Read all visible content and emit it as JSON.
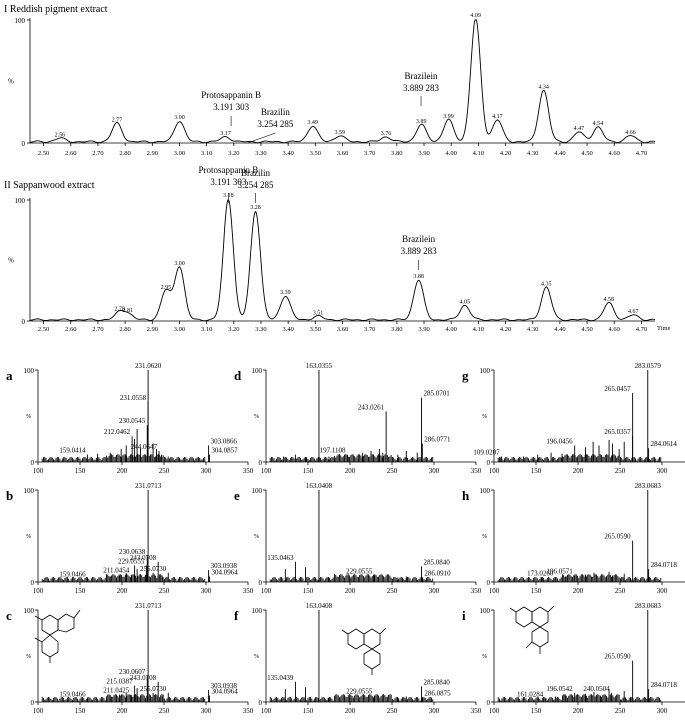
{
  "chart_data": [
    {
      "type": "line",
      "title": "I Reddish pigment extract",
      "xlim": [
        2.45,
        4.75
      ],
      "ylim": [
        0,
        100
      ],
      "xticks": [
        2.5,
        2.6,
        2.7,
        2.8,
        2.9,
        3.0,
        3.1,
        3.2,
        3.3,
        3.4,
        3.5,
        3.6,
        3.7,
        3.8,
        3.9,
        4.0,
        4.1,
        4.2,
        4.3,
        4.4,
        4.5,
        4.6,
        4.7
      ],
      "yticks": [
        0,
        100
      ],
      "ylabel": "%",
      "xlabel": "",
      "peaks": [
        {
          "rt": 2.56,
          "height": 3,
          "label": "2.56"
        },
        {
          "rt": 2.77,
          "height": 15,
          "label": "2.77"
        },
        {
          "rt": 3.0,
          "height": 17,
          "label": "3.00"
        },
        {
          "rt": 3.17,
          "height": 4,
          "label": "3.17"
        },
        {
          "rt": 3.49,
          "height": 13,
          "label": "3.49"
        },
        {
          "rt": 3.59,
          "height": 5,
          "label": "3.59"
        },
        {
          "rt": 3.76,
          "height": 4,
          "label": "3.76"
        },
        {
          "rt": 3.89,
          "height": 14,
          "label": "3.89"
        },
        {
          "rt": 3.99,
          "height": 18,
          "label": "3.99"
        },
        {
          "rt": 4.09,
          "height": 100,
          "label": "4.09"
        },
        {
          "rt": 4.17,
          "height": 18,
          "label": "4.17"
        },
        {
          "rt": 4.34,
          "height": 42,
          "label": "4.34"
        },
        {
          "rt": 4.47,
          "height": 8,
          "label": "4.47"
        },
        {
          "rt": 4.54,
          "height": 12,
          "label": "4.54"
        },
        {
          "rt": 4.66,
          "height": 5,
          "label": "4.66"
        }
      ],
      "annotations": [
        {
          "name": "Protosappanin B",
          "value": "3.191   303",
          "rt": 3.19
        },
        {
          "name": "Brazilin",
          "value": "3.254   285",
          "rt": 3.25
        },
        {
          "name": "Brazilein",
          "value": "3.889   283",
          "rt": 3.889
        }
      ]
    },
    {
      "type": "line",
      "title": "II Sappanwood extract",
      "xlim": [
        2.45,
        4.75
      ],
      "ylim": [
        0,
        100
      ],
      "xticks": [
        2.5,
        2.6,
        2.7,
        2.8,
        2.9,
        3.0,
        3.1,
        3.2,
        3.3,
        3.4,
        3.5,
        3.6,
        3.7,
        3.8,
        3.9,
        4.0,
        4.1,
        4.2,
        4.3,
        4.4,
        4.5,
        4.6,
        4.7
      ],
      "yticks": [
        0,
        100
      ],
      "ylabel": "%",
      "xlabel": "Time",
      "peaks": [
        {
          "rt": 2.78,
          "height": 6,
          "label": "2.78"
        },
        {
          "rt": 2.81,
          "height": 5,
          "label": "2.81"
        },
        {
          "rt": 2.95,
          "height": 24,
          "label": "2.95"
        },
        {
          "rt": 3.0,
          "height": 44,
          "label": "3.00"
        },
        {
          "rt": 3.18,
          "height": 100,
          "label": "3.18"
        },
        {
          "rt": 3.28,
          "height": 90,
          "label": "3.28"
        },
        {
          "rt": 3.39,
          "height": 20,
          "label": "3.39"
        },
        {
          "rt": 3.51,
          "height": 3,
          "label": "3.51"
        },
        {
          "rt": 3.88,
          "height": 33,
          "label": "3.88"
        },
        {
          "rt": 4.05,
          "height": 12,
          "label": "4.05"
        },
        {
          "rt": 4.35,
          "height": 27,
          "label": "4.35"
        },
        {
          "rt": 4.58,
          "height": 14,
          "label": "4.58"
        },
        {
          "rt": 4.67,
          "height": 4,
          "label": "4.67"
        }
      ],
      "annotations": [
        {
          "name": "Protosappanin B",
          "value": "3.191   303",
          "rt": 3.18
        },
        {
          "name": "Brazilin",
          "value": "3.254   285",
          "rt": 3.28
        },
        {
          "name": "Brazilein",
          "value": "3.889   283",
          "rt": 3.88
        }
      ]
    },
    {
      "type": "bar",
      "panel": "a",
      "xlim": [
        100,
        350
      ],
      "ylim": [
        0,
        100
      ],
      "xticks": [
        100,
        150,
        200,
        250,
        300,
        350
      ],
      "yticks": [
        0,
        100
      ],
      "ylabel": "%",
      "peaks": [
        [
          159.0414,
          8,
          "159.0414"
        ],
        [
          212.0462,
          28,
          "212.0462"
        ],
        [
          230.0545,
          40,
          "230.0545"
        ],
        [
          231.0558,
          65,
          "231.0558"
        ],
        [
          231.062,
          100,
          "231.0620"
        ],
        [
          244.0647,
          12,
          "244.0647"
        ],
        [
          303.0866,
          18,
          "303.0866"
        ],
        [
          304.0857,
          8,
          "304.0857"
        ],
        [
          215,
          25,
          ""
        ],
        [
          218,
          36,
          ""
        ],
        [
          222,
          15,
          ""
        ],
        [
          205,
          18,
          ""
        ],
        [
          199,
          14,
          ""
        ],
        [
          186,
          10,
          ""
        ],
        [
          171,
          9,
          ""
        ],
        [
          237,
          20,
          ""
        ],
        [
          241,
          14,
          ""
        ],
        [
          247,
          8,
          ""
        ],
        [
          255,
          6,
          ""
        ],
        [
          288,
          4,
          ""
        ]
      ]
    },
    {
      "type": "bar",
      "panel": "b",
      "xlim": [
        100,
        350
      ],
      "ylim": [
        0,
        100
      ],
      "xticks": [
        100,
        150,
        200,
        250,
        300,
        350
      ],
      "yticks": [
        0,
        100
      ],
      "ylabel": "%",
      "peaks": [
        [
          159.0466,
          4,
          "159.0466"
        ],
        [
          211.0454,
          8,
          "211.0454"
        ],
        [
          229.0555,
          18,
          "229.0555"
        ],
        [
          230.0638,
          28,
          "230.0638"
        ],
        [
          231.0713,
          100,
          "231.0713"
        ],
        [
          243.0708,
          22,
          "243.0708"
        ],
        [
          255.073,
          10,
          "255.0730"
        ],
        [
          303.0938,
          13,
          "303.0938"
        ],
        [
          304.0964,
          6,
          "304.0964"
        ],
        [
          215,
          18,
          ""
        ],
        [
          218,
          14,
          ""
        ],
        [
          205,
          10,
          ""
        ],
        [
          186,
          6,
          ""
        ],
        [
          197,
          7,
          ""
        ],
        [
          237,
          10,
          ""
        ],
        [
          248,
          6,
          ""
        ]
      ]
    },
    {
      "type": "bar",
      "panel": "c",
      "xlim": [
        100,
        350
      ],
      "ylim": [
        0,
        100
      ],
      "xticks": [
        100,
        150,
        200,
        250,
        300,
        350
      ],
      "yticks": [
        0,
        100
      ],
      "ylabel": "%",
      "peaks": [
        [
          159.0466,
          4,
          "159.0466"
        ],
        [
          211.0425,
          8,
          "211.0425"
        ],
        [
          215.0387,
          18,
          "215.0387"
        ],
        [
          230.0607,
          28,
          "230.0607"
        ],
        [
          231.0713,
          100,
          "231.0713"
        ],
        [
          243.0708,
          22,
          "243.0708"
        ],
        [
          255.073,
          10,
          "255.0730"
        ],
        [
          303.0938,
          13,
          "303.0938"
        ],
        [
          304.0964,
          7,
          "304.0964"
        ],
        [
          218,
          15,
          ""
        ],
        [
          205,
          10,
          ""
        ],
        [
          186,
          6,
          ""
        ],
        [
          197,
          8,
          ""
        ],
        [
          237,
          10,
          ""
        ],
        [
          248,
          6,
          ""
        ]
      ]
    },
    {
      "type": "bar",
      "panel": "d",
      "xlim": [
        100,
        350
      ],
      "ylim": [
        0,
        100
      ],
      "xticks": [
        100,
        150,
        200,
        250,
        300,
        350
      ],
      "yticks": [
        0,
        100
      ],
      "ylabel": "%",
      "peaks": [
        [
          163.0355,
          100,
          "163.0355"
        ],
        [
          197.1108,
          8,
          "197.1108"
        ],
        [
          243.0261,
          55,
          "243.0261"
        ],
        [
          285.0701,
          70,
          "285.0701"
        ],
        [
          286.0771,
          20,
          "286.0771"
        ],
        [
          121,
          6,
          ""
        ],
        [
          135,
          8,
          ""
        ],
        [
          148,
          5,
          ""
        ],
        [
          175,
          6,
          ""
        ],
        [
          215,
          10,
          ""
        ],
        [
          225,
          12,
          ""
        ],
        [
          235,
          14,
          ""
        ],
        [
          239,
          10,
          ""
        ],
        [
          257,
          8,
          ""
        ],
        [
          267,
          12,
          ""
        ],
        [
          280,
          10,
          ""
        ]
      ]
    },
    {
      "type": "bar",
      "panel": "e",
      "xlim": [
        100,
        350
      ],
      "ylim": [
        0,
        100
      ],
      "xticks": [
        100,
        150,
        200,
        250,
        300,
        350
      ],
      "yticks": [
        0,
        100
      ],
      "ylabel": "%",
      "peaks": [
        [
          135.0463,
          22,
          "135.0463"
        ],
        [
          163.0408,
          100,
          "163.0408"
        ],
        [
          229.0555,
          7,
          "229.0555"
        ],
        [
          285.084,
          17,
          "285.0840"
        ],
        [
          286.091,
          5,
          "286.0910"
        ],
        [
          123,
          14,
          ""
        ],
        [
          147,
          16,
          ""
        ],
        [
          175,
          5,
          ""
        ],
        [
          201,
          4,
          ""
        ],
        [
          257,
          5,
          ""
        ],
        [
          267,
          6,
          ""
        ]
      ]
    },
    {
      "type": "bar",
      "panel": "f",
      "xlim": [
        100,
        350
      ],
      "ylim": [
        0,
        100
      ],
      "xticks": [
        100,
        150,
        200,
        250,
        300,
        350
      ],
      "yticks": [
        0,
        100
      ],
      "ylabel": "%",
      "peaks": [
        [
          135.0439,
          22,
          "135.0439"
        ],
        [
          163.0408,
          100,
          "163.0408"
        ],
        [
          229.0555,
          7,
          "229.0555"
        ],
        [
          285.084,
          17,
          "285.0840"
        ],
        [
          286.0875,
          5,
          "286.0875"
        ],
        [
          123,
          14,
          ""
        ],
        [
          147,
          16,
          ""
        ],
        [
          175,
          5,
          ""
        ],
        [
          201,
          4,
          ""
        ],
        [
          257,
          5,
          ""
        ],
        [
          267,
          6,
          ""
        ]
      ]
    },
    {
      "type": "bar",
      "panel": "g",
      "xlim": [
        100,
        350
      ],
      "ylim": [
        0,
        100
      ],
      "xticks": [
        100,
        150,
        200,
        250,
        300,
        350
      ],
      "yticks": [
        0,
        100
      ],
      "ylabel": "%",
      "peaks": [
        [
          109.0207,
          6,
          "109.0207"
        ],
        [
          196.0456,
          18,
          "196.0456"
        ],
        [
          265.0357,
          28,
          "265.0357"
        ],
        [
          265.0457,
          75,
          "265.0457"
        ],
        [
          283.0579,
          100,
          "283.0579"
        ],
        [
          284.0614,
          15,
          "284.0614"
        ],
        [
          135,
          6,
          ""
        ],
        [
          152,
          8,
          ""
        ],
        [
          168,
          10,
          ""
        ],
        [
          181,
          9,
          ""
        ],
        [
          209,
          16,
          ""
        ],
        [
          218,
          22,
          ""
        ],
        [
          225,
          18,
          ""
        ],
        [
          237,
          24,
          ""
        ],
        [
          241,
          20,
          ""
        ],
        [
          249,
          14,
          ""
        ],
        [
          255,
          22,
          ""
        ]
      ]
    },
    {
      "type": "bar",
      "panel": "h",
      "xlim": [
        100,
        350
      ],
      "ylim": [
        0,
        100
      ],
      "xticks": [
        100,
        150,
        200,
        250,
        300,
        350
      ],
      "yticks": [
        0,
        100
      ],
      "ylabel": "%",
      "peaks": [
        [
          173.026,
          5,
          "173.0260"
        ],
        [
          196.0571,
          7,
          "196.0571"
        ],
        [
          265.059,
          45,
          "265.0590"
        ],
        [
          283.0683,
          100,
          "283.0683"
        ],
        [
          284.0718,
          14,
          "284.0718"
        ],
        [
          157,
          5,
          ""
        ],
        [
          185,
          6,
          ""
        ],
        [
          209,
          8,
          ""
        ],
        [
          219,
          10,
          ""
        ],
        [
          237,
          11,
          ""
        ],
        [
          255,
          9,
          ""
        ],
        [
          241,
          7,
          ""
        ]
      ]
    },
    {
      "type": "bar",
      "panel": "i",
      "xlim": [
        100,
        350
      ],
      "ylim": [
        0,
        100
      ],
      "xticks": [
        100,
        150,
        200,
        250,
        300,
        350
      ],
      "yticks": [
        0,
        100
      ],
      "ylabel": "%",
      "peaks": [
        [
          161.0284,
          4,
          "161.0284"
        ],
        [
          196.0542,
          10,
          "196.0542"
        ],
        [
          240.0504,
          10,
          "240.0504"
        ],
        [
          265.059,
          45,
          "265.0590"
        ],
        [
          283.0683,
          100,
          "283.0683"
        ],
        [
          284.0718,
          14,
          "284.0718"
        ],
        [
          173,
          6,
          ""
        ],
        [
          185,
          8,
          ""
        ],
        [
          209,
          9,
          ""
        ],
        [
          219,
          11,
          ""
        ],
        [
          227,
          7,
          ""
        ],
        [
          237,
          14,
          ""
        ],
        [
          255,
          12,
          ""
        ]
      ]
    }
  ]
}
